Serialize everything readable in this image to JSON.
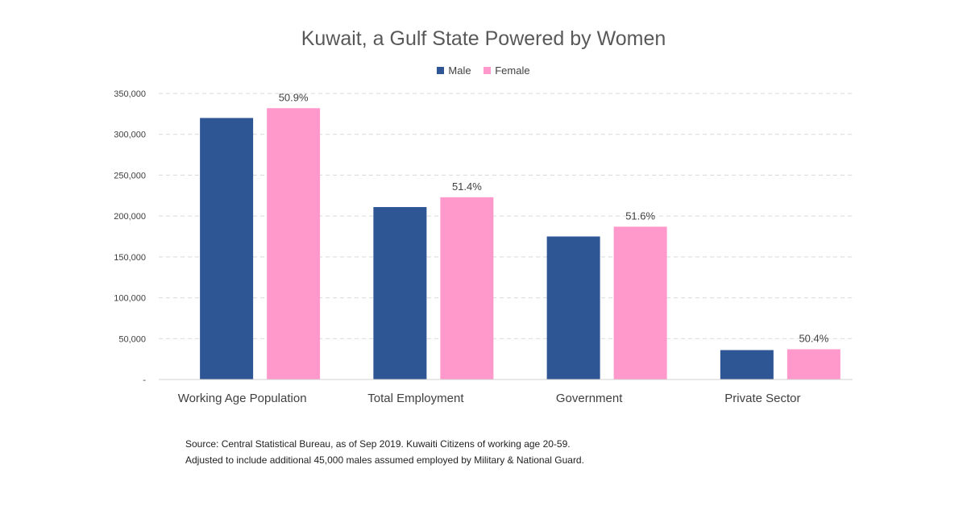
{
  "chart_data": {
    "type": "bar",
    "title": "Kuwait, a Gulf State Powered by Women",
    "categories": [
      "Working Age Population",
      "Total Employment",
      "Government",
      "Private Sector"
    ],
    "series": [
      {
        "name": "Male",
        "color": "#2E5594",
        "values": [
          320000,
          211000,
          175000,
          36000
        ]
      },
      {
        "name": "Female",
        "color": "#FF99CC",
        "values": [
          332000,
          223000,
          187000,
          37000
        ]
      }
    ],
    "data_labels": [
      "50.9%",
      "51.4%",
      "51.6%",
      "50.4%"
    ],
    "y_ticks": [
      {
        "value": 0,
        "label": "-"
      },
      {
        "value": 50000,
        "label": "50,000"
      },
      {
        "value": 100000,
        "label": "100,000"
      },
      {
        "value": 150000,
        "label": "150,000"
      },
      {
        "value": 200000,
        "label": "200,000"
      },
      {
        "value": 250000,
        "label": "250,000"
      },
      {
        "value": 300000,
        "label": "300,000"
      },
      {
        "value": 350000,
        "label": "350,000"
      }
    ],
    "ylim": [
      0,
      350000
    ],
    "xlabel": "",
    "ylabel": "",
    "grid": true,
    "legend_position": "top-center"
  },
  "notes": [
    "Source: Central Statistical Bureau, as of Sep 2019. Kuwaiti Citizens of working age 20-59.",
    "Adjusted to include additional 45,000 males assumed employed by Military & National Guard."
  ]
}
